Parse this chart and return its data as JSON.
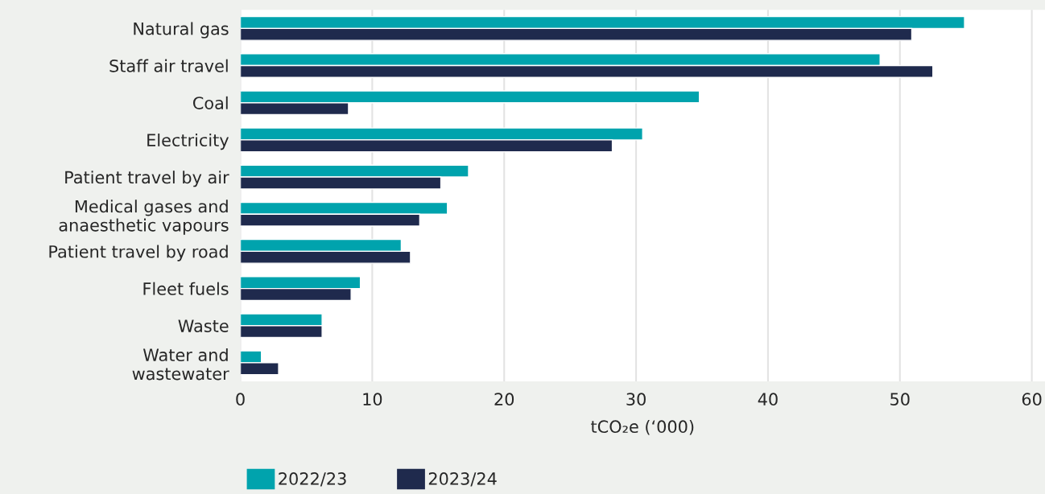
{
  "chart_data": {
    "type": "bar",
    "orientation": "horizontal",
    "categories": [
      "Natural gas",
      "Staff air travel",
      "Coal",
      "Electricity",
      "Patient travel by air",
      "Medical gases and\nanaesthetic vapours",
      "Patient travel by road",
      "Fleet fuels",
      "Waste",
      "Water and\nwastewater"
    ],
    "series": [
      {
        "name": "2022/23",
        "color": "#00a3ad",
        "values": [
          54.9,
          48.5,
          34.8,
          30.5,
          17.3,
          15.7,
          12.2,
          9.1,
          6.2,
          1.6
        ]
      },
      {
        "name": "2023/24",
        "color": "#1f2a4d",
        "values": [
          50.9,
          52.5,
          8.2,
          28.2,
          15.2,
          13.6,
          12.9,
          8.4,
          6.2,
          2.9
        ]
      }
    ],
    "xlabel": "tCO₂e (‘000)",
    "xlim": [
      0,
      61
    ],
    "xticks": [
      0,
      10,
      20,
      30,
      40,
      50,
      60
    ],
    "grid": "x",
    "legend": "bottom"
  }
}
